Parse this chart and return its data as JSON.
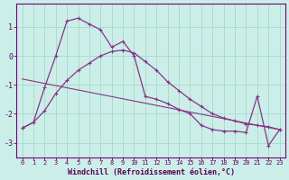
{
  "xlabel": "Windchill (Refroidissement éolien,°C)",
  "background_color": "#cceee8",
  "grid_color": "#aaddcc",
  "line_color": "#883388",
  "xlim": [
    -0.5,
    23.5
  ],
  "ylim": [
    -3.5,
    1.8
  ],
  "yticks": [
    -3,
    -2,
    -1,
    0,
    1
  ],
  "xticks": [
    0,
    1,
    2,
    3,
    4,
    5,
    6,
    7,
    8,
    9,
    10,
    11,
    12,
    13,
    14,
    15,
    16,
    17,
    18,
    19,
    20,
    21,
    22,
    23
  ],
  "series1_x": [
    0,
    1,
    2,
    3,
    4,
    5,
    6,
    7,
    8,
    9,
    10,
    11,
    12,
    13,
    14,
    15,
    16,
    17,
    18,
    19,
    20,
    21,
    22,
    23
  ],
  "series1_y": [
    -2.5,
    -2.3,
    -1.1,
    0.0,
    1.2,
    1.3,
    1.1,
    0.9,
    0.3,
    0.5,
    0.0,
    -1.4,
    -1.5,
    -1.65,
    -1.85,
    -2.0,
    -2.4,
    -2.55,
    -2.6,
    -2.6,
    -2.65,
    -1.4,
    -3.1,
    -2.55
  ],
  "series2_x": [
    0,
    23
  ],
  "series2_y": [
    -0.8,
    -2.55
  ],
  "series3_x": [
    0,
    1,
    2,
    3,
    4,
    5,
    6,
    7,
    8,
    9,
    10,
    11,
    12,
    13,
    14,
    15,
    16,
    17,
    18,
    19,
    20,
    21,
    22,
    23
  ],
  "series3_y": [
    -2.5,
    -2.3,
    -1.9,
    -1.3,
    -0.85,
    -0.5,
    -0.25,
    0.0,
    0.15,
    0.2,
    0.1,
    -0.2,
    -0.5,
    -0.9,
    -1.2,
    -1.5,
    -1.75,
    -2.0,
    -2.15,
    -2.25,
    -2.35,
    -2.4,
    -2.45,
    -2.55
  ]
}
